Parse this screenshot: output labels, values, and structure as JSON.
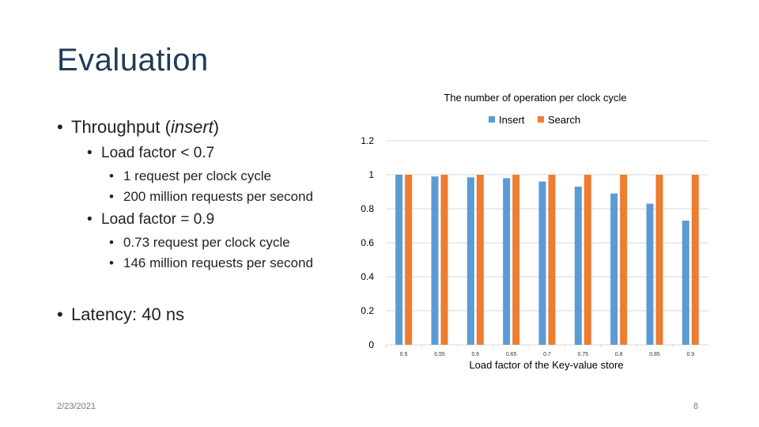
{
  "slide": {
    "title": "Evaluation",
    "bullets": {
      "throughput_prefix": "Throughput (",
      "throughput_italic": "insert",
      "throughput_suffix": ")",
      "lf_lt": "Load factor < 0.7",
      "lf_lt_1": "1 request per clock cycle",
      "lf_lt_2": "200 million requests per second",
      "lf_eq": "Load factor = 0.9",
      "lf_eq_1": "0.73 request per clock cycle",
      "lf_eq_2": "146 million requests per second",
      "latency": "Latency:  40 ns"
    },
    "footer": {
      "date": "2/23/2021",
      "page": "8"
    }
  },
  "colors": {
    "insert": "#5b9bd5",
    "search": "#ed7d31",
    "title": "#1f3b57"
  },
  "chart_data": {
    "type": "bar",
    "title": "The number of operation per clock cycle",
    "xlabel": "Load factor of the Key-value store",
    "ylabel": "",
    "categories": [
      "0.5",
      "0.55",
      "0.6",
      "0.65",
      "0.7",
      "0.75",
      "0.8",
      "0.85",
      "0.9"
    ],
    "series": [
      {
        "name": "Insert",
        "values": [
          1.0,
          0.99,
          0.985,
          0.98,
          0.96,
          0.93,
          0.89,
          0.83,
          0.73
        ]
      },
      {
        "name": "Search",
        "values": [
          1.0,
          1.0,
          1.0,
          1.0,
          1.0,
          1.0,
          1.0,
          1.0,
          1.0
        ]
      }
    ],
    "ylim": [
      0,
      1.2
    ],
    "yticks": [
      "0",
      "0.2",
      "0.4",
      "0.6",
      "0.8",
      "1",
      "1.2"
    ],
    "legend": "top-center",
    "grid": true
  }
}
